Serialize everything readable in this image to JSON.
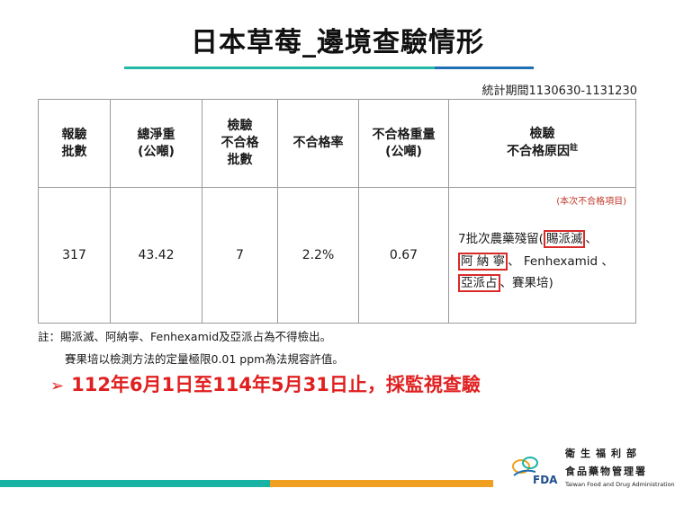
{
  "title": "日本草莓_邊境查驗情形",
  "period": "統計期間1130630-1131230",
  "table": {
    "headers": {
      "batches": [
        "報驗",
        "批數"
      ],
      "net_weight": [
        "總淨重",
        "(公噸)"
      ],
      "failed_batches": [
        "檢驗",
        "不合格",
        "批數"
      ],
      "failure_rate": "不合格率",
      "failed_weight": [
        "不合格重量",
        "(公噸)"
      ],
      "failure_reason": [
        "檢驗",
        "不合格原因"
      ],
      "failure_reason_sup": "註"
    },
    "row": {
      "batches": "317",
      "net_weight": "43.42",
      "failed_batches": "7",
      "failure_rate": "2.2%",
      "failed_weight": "0.67",
      "reason_note": "(本次不合格項目)",
      "reason_prefix": "7批次農藥殘留(",
      "reason_item1": "賜派滅",
      "reason_sep1": "、",
      "reason_item2": "阿 納 寧",
      "reason_mid": "、 Fenhexamid 、",
      "reason_item3": "亞派占",
      "reason_suffix": "、賽果培)"
    }
  },
  "footnote_line1": "註：賜派滅、阿納寧、Fenhexamid及亞派占為不得檢出。",
  "footnote_line2": "賽果培以檢測方法的定量極限0.01 ppm為法規容許值。",
  "highlight_arrow": "➢",
  "highlight_text": "112年6月1日至114年5月31日止，採監視查驗",
  "agency": {
    "zh_line1": "衛生福利部",
    "zh_line2": "食品藥物管理署",
    "en": "Taiwan Food and Drug Administration",
    "logo_text": "FDA"
  },
  "colors": {
    "teal": "#19b3a6",
    "orange": "#f0a020",
    "red": "#e02020",
    "blue": "#1f6fb4"
  }
}
